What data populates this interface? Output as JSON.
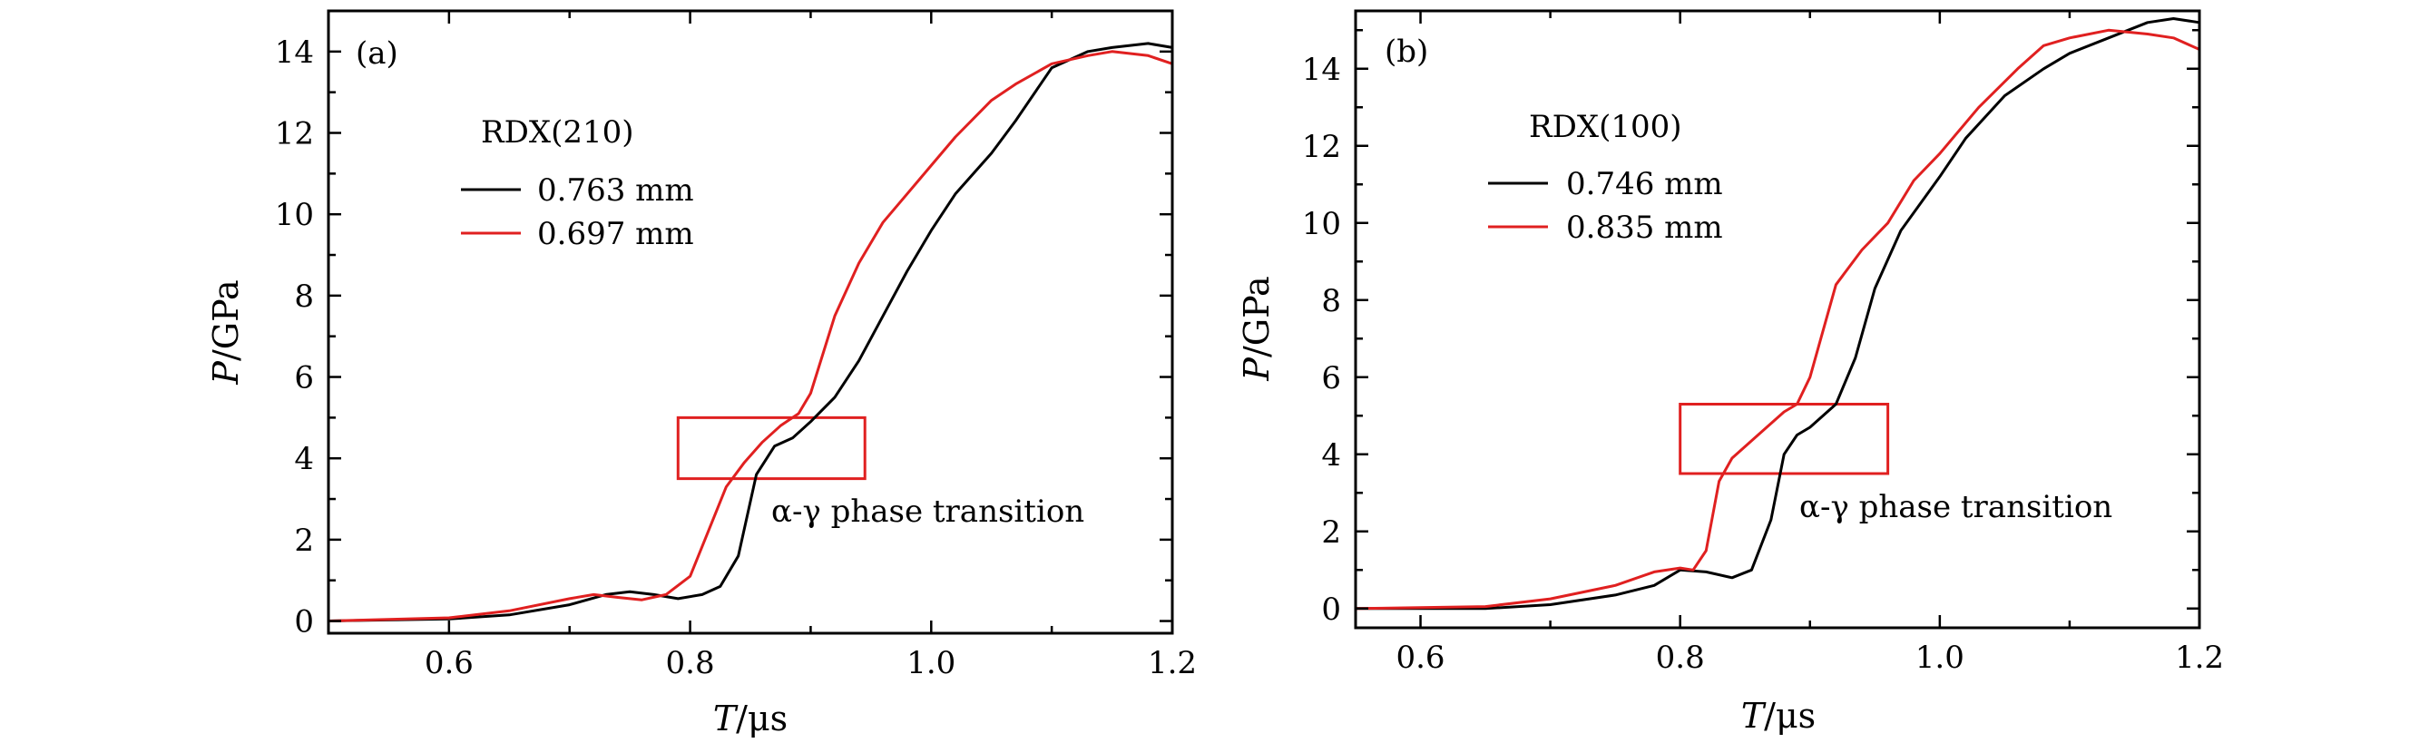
{
  "chart_data": [
    {
      "type": "line",
      "panel_label": "(a)",
      "xlabel": "T",
      "xunit": "/μs",
      "ylabel": "P",
      "yunit": "/GPa",
      "xlim": [
        0.5,
        1.2
      ],
      "ylim": [
        -0.3,
        15.0
      ],
      "xticks": [
        0.6,
        0.8,
        1.0,
        1.2
      ],
      "xtick_labels": [
        "0.6",
        "0.8",
        "1.0",
        "1.2"
      ],
      "yticks": [
        0,
        2,
        4,
        6,
        8,
        10,
        12,
        14
      ],
      "ytick_labels": [
        "0",
        "2",
        "4",
        "6",
        "8",
        "10",
        "12",
        "14"
      ],
      "legend_title": "RDX(210)",
      "annotation": "α-γ phase transition",
      "highlight_box": {
        "x0": 0.79,
        "x1": 0.945,
        "y0": 3.5,
        "y1": 5.0,
        "color": "#e02020"
      },
      "series": [
        {
          "name": "0.763 mm",
          "color": "#000000",
          "x": [
            0.5,
            0.6,
            0.65,
            0.7,
            0.73,
            0.75,
            0.77,
            0.79,
            0.81,
            0.825,
            0.84,
            0.855,
            0.87,
            0.885,
            0.9,
            0.92,
            0.94,
            0.96,
            0.98,
            1.0,
            1.02,
            1.05,
            1.07,
            1.1,
            1.13,
            1.15,
            1.18,
            1.2
          ],
          "y": [
            0.0,
            0.05,
            0.15,
            0.4,
            0.65,
            0.72,
            0.65,
            0.55,
            0.65,
            0.85,
            1.6,
            3.6,
            4.3,
            4.5,
            4.9,
            5.5,
            6.4,
            7.5,
            8.6,
            9.6,
            10.5,
            11.5,
            12.3,
            13.6,
            14.0,
            14.1,
            14.2,
            14.1
          ]
        },
        {
          "name": "0.697 mm",
          "color": "#e02020",
          "x": [
            0.5,
            0.6,
            0.65,
            0.7,
            0.72,
            0.74,
            0.76,
            0.78,
            0.8,
            0.815,
            0.83,
            0.845,
            0.86,
            0.875,
            0.89,
            0.9,
            0.92,
            0.94,
            0.96,
            0.98,
            1.0,
            1.02,
            1.05,
            1.07,
            1.1,
            1.13,
            1.15,
            1.18,
            1.2
          ],
          "y": [
            0.0,
            0.08,
            0.25,
            0.55,
            0.65,
            0.58,
            0.52,
            0.65,
            1.1,
            2.2,
            3.3,
            3.9,
            4.4,
            4.8,
            5.1,
            5.6,
            7.5,
            8.8,
            9.8,
            10.5,
            11.2,
            11.9,
            12.8,
            13.2,
            13.7,
            13.9,
            14.0,
            13.9,
            13.7
          ]
        }
      ]
    },
    {
      "type": "line",
      "panel_label": "(b)",
      "xlabel": "T",
      "xunit": "/μs",
      "ylabel": "P",
      "yunit": "/GPa",
      "xlim": [
        0.55,
        1.2
      ],
      "ylim": [
        -0.5,
        15.5
      ],
      "xticks": [
        0.6,
        0.8,
        1.0,
        1.2
      ],
      "xtick_labels": [
        "0.6",
        "0.8",
        "1.0",
        "1.2"
      ],
      "yticks": [
        0,
        2,
        4,
        6,
        8,
        10,
        12,
        14
      ],
      "ytick_labels": [
        "0",
        "2",
        "4",
        "6",
        "8",
        "10",
        "12",
        "14"
      ],
      "legend_title": "RDX(100)",
      "annotation": "α-γ phase transition",
      "highlight_box": {
        "x0": 0.8,
        "x1": 0.96,
        "y0": 3.5,
        "y1": 5.3,
        "color": "#e02020"
      },
      "series": [
        {
          "name": "0.746 mm",
          "color": "#000000",
          "x": [
            0.55,
            0.65,
            0.7,
            0.75,
            0.78,
            0.8,
            0.82,
            0.84,
            0.855,
            0.87,
            0.88,
            0.89,
            0.9,
            0.92,
            0.935,
            0.95,
            0.97,
            1.0,
            1.02,
            1.05,
            1.08,
            1.1,
            1.13,
            1.16,
            1.18,
            1.2
          ],
          "y": [
            0.0,
            0.0,
            0.1,
            0.35,
            0.6,
            1.0,
            0.95,
            0.8,
            1.0,
            2.3,
            4.0,
            4.5,
            4.7,
            5.3,
            6.5,
            8.3,
            9.8,
            11.2,
            12.2,
            13.3,
            14.0,
            14.4,
            14.8,
            15.2,
            15.3,
            15.2
          ]
        },
        {
          "name": "0.835 mm",
          "color": "#e02020",
          "x": [
            0.55,
            0.65,
            0.7,
            0.75,
            0.78,
            0.8,
            0.81,
            0.82,
            0.83,
            0.84,
            0.86,
            0.88,
            0.89,
            0.9,
            0.92,
            0.94,
            0.96,
            0.98,
            1.0,
            1.03,
            1.06,
            1.08,
            1.1,
            1.13,
            1.16,
            1.18,
            1.2
          ],
          "y": [
            0.0,
            0.05,
            0.25,
            0.6,
            0.95,
            1.05,
            1.0,
            1.5,
            3.3,
            3.9,
            4.5,
            5.1,
            5.3,
            6.0,
            8.4,
            9.3,
            10.0,
            11.1,
            11.8,
            13.0,
            14.0,
            14.6,
            14.8,
            15.0,
            14.9,
            14.8,
            14.5
          ]
        }
      ]
    }
  ]
}
